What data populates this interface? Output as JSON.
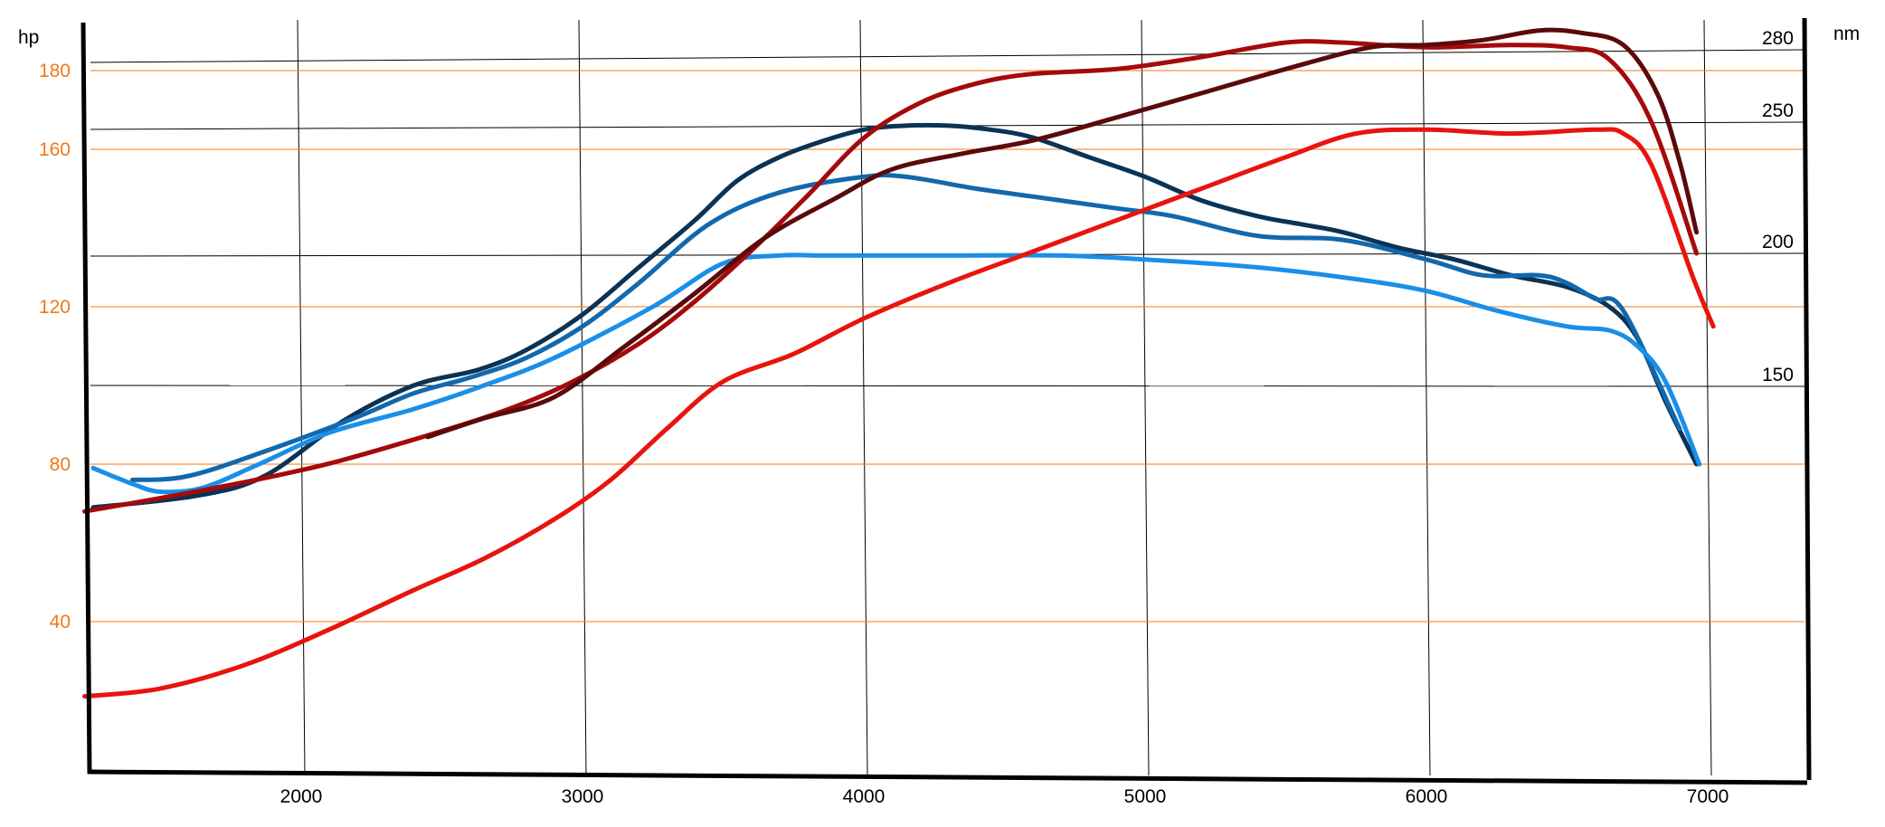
{
  "chart_data": {
    "type": "line",
    "title": "",
    "xlabel": "",
    "xlim": [
      1200,
      7350
    ],
    "x_ticks": [
      2000,
      3000,
      4000,
      5000,
      6000,
      7000
    ],
    "y_left": {
      "label": "hp",
      "ticks": [
        40,
        80,
        120,
        160,
        180
      ],
      "lim": [
        0,
        193
      ],
      "color": "#f07818"
    },
    "y_right": {
      "label": "nm",
      "ticks": [
        150,
        200,
        250,
        280
      ],
      "color": "#000000"
    },
    "grid": true,
    "legend": "none",
    "series": [
      {
        "axis": "hp",
        "color": "#0a3355",
        "x": [
          1260,
          1630,
          1870,
          2150,
          2400,
          2630,
          2800,
          3000,
          3200,
          3400,
          3550,
          3700,
          3850,
          4000,
          4150,
          4300,
          4450,
          4600,
          4800,
          5000,
          5200,
          5400,
          5550,
          5700,
          5900,
          6100,
          6300,
          6500,
          6650,
          6750,
          6850,
          6960
        ],
        "y": [
          69,
          72,
          77,
          91,
          100,
          104,
          109,
          118,
          130,
          142,
          152,
          158,
          162,
          165,
          166,
          166,
          165,
          163,
          158,
          153,
          147,
          143,
          141,
          139,
          135,
          132,
          128,
          125,
          120,
          112,
          96,
          80
        ]
      },
      {
        "axis": "hp",
        "color": "#1268ad",
        "x": [
          1400,
          1600,
          1900,
          2200,
          2400,
          2600,
          2800,
          3000,
          3200,
          3450,
          3700,
          4000,
          4150,
          4400,
          4600,
          4900,
          5100,
          5400,
          5700,
          6000,
          6200,
          6400,
          6500,
          6600,
          6700,
          6900
        ],
        "y": [
          76,
          77,
          84,
          92,
          98,
          102,
          107,
          115,
          126,
          141,
          149,
          153,
          153,
          150,
          148,
          145,
          143,
          138,
          137,
          132,
          128,
          128,
          126,
          122,
          119,
          89
        ]
      },
      {
        "axis": "hp",
        "color": "#1a8fe8",
        "x": [
          1260,
          1400,
          1500,
          1650,
          1850,
          2100,
          2400,
          2650,
          2900,
          3250,
          3500,
          3700,
          3850,
          4050,
          4300,
          4700,
          5000,
          5400,
          5750,
          6000,
          6250,
          6500,
          6650,
          6750,
          6850,
          6970
        ],
        "y": [
          79,
          75,
          73,
          74,
          80,
          88,
          94,
          100,
          107,
          120,
          131,
          133,
          133,
          133,
          133,
          133,
          132,
          130,
          127,
          124,
          119,
          115,
          114,
          110,
          101,
          80
        ]
      },
      {
        "axis": "hp",
        "color": "#e8140e",
        "x": [
          1230,
          1500,
          1800,
          2100,
          2400,
          2650,
          2900,
          3100,
          3300,
          3500,
          3750,
          4000,
          4300,
          4600,
          4900,
          5200,
          5500,
          5750,
          6000,
          6300,
          6600,
          6700,
          6800,
          6950,
          7020
        ],
        "y": [
          21,
          23,
          29,
          38,
          48,
          56,
          66,
          76,
          89,
          101,
          108,
          117,
          126,
          134,
          142,
          150,
          158,
          164,
          165,
          164,
          165,
          164,
          156,
          127,
          115
        ]
      },
      {
        "axis": "nm",
        "color": "#a50a0a",
        "x": [
          1230,
          1500,
          1800,
          2100,
          2400,
          2700,
          2950,
          3200,
          3400,
          3600,
          3800,
          4000,
          4200,
          4400,
          4600,
          4900,
          5200,
          5500,
          5700,
          6000,
          6300,
          6500,
          6650,
          6800,
          6960
        ],
        "y": [
          103,
          108,
          114,
          121,
          130,
          140,
          151,
          166,
          182,
          201,
          222,
          244,
          258,
          266,
          270,
          272,
          277,
          283,
          283,
          281,
          282,
          281,
          276,
          250,
          200
        ]
      },
      {
        "axis": "nm",
        "color": "#5a0a0a",
        "x": [
          2450,
          2650,
          2900,
          3150,
          3400,
          3650,
          3900,
          4100,
          4350,
          4600,
          4900,
          5200,
          5500,
          5800,
          6000,
          6200,
          6400,
          6550,
          6700,
          6820,
          6900,
          6960
        ],
        "y": [
          131,
          138,
          146,
          165,
          185,
          206,
          221,
          232,
          238,
          243,
          252,
          262,
          272,
          281,
          282,
          284,
          288,
          287,
          282,
          262,
          235,
          208
        ]
      }
    ]
  }
}
